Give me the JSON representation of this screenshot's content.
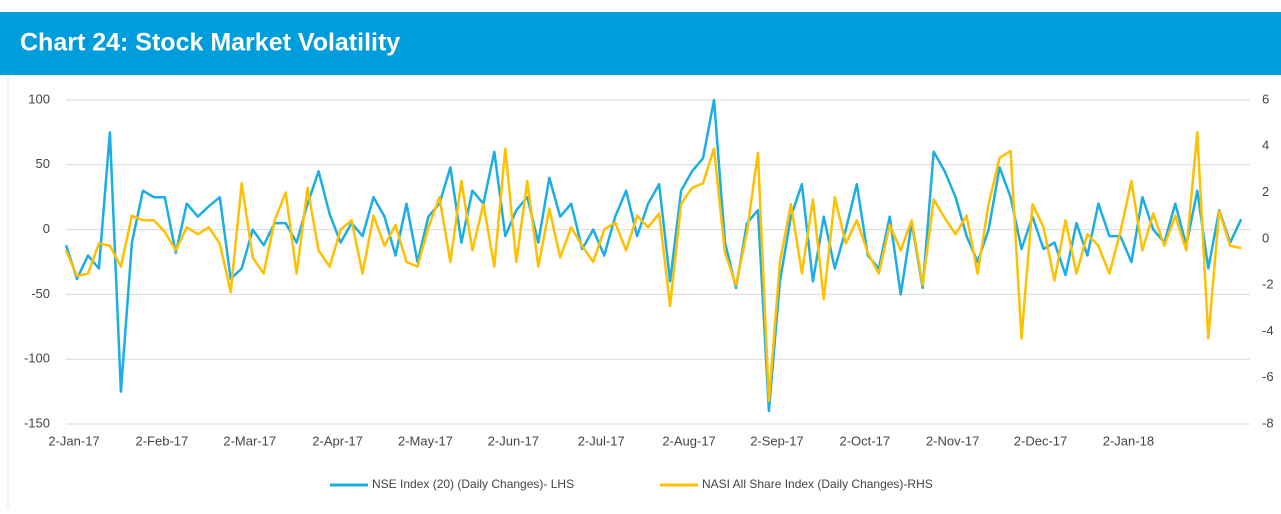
{
  "chart_data": {
    "type": "line",
    "title": "Chart 24: Stock Market Volatility",
    "categories": [
      "2-Jan-17",
      null,
      null,
      null,
      null,
      null,
      null,
      null,
      "2-Feb-17",
      null,
      null,
      null,
      null,
      null,
      null,
      null,
      "2-Mar-17",
      null,
      null,
      null,
      null,
      null,
      null,
      null,
      "2-Apr-17",
      null,
      null,
      null,
      null,
      null,
      null,
      null,
      "2-May-17",
      null,
      null,
      null,
      null,
      null,
      null,
      null,
      "2-Jun-17",
      null,
      null,
      null,
      null,
      null,
      null,
      null,
      "2-Jul-17",
      null,
      null,
      null,
      null,
      null,
      null,
      null,
      "2-Aug-17",
      null,
      null,
      null,
      null,
      null,
      null,
      null,
      "2-Sep-17",
      null,
      null,
      null,
      null,
      null,
      null,
      null,
      "2-Oct-17",
      null,
      null,
      null,
      null,
      null,
      null,
      null,
      "2-Nov-17",
      null,
      null,
      null,
      null,
      null,
      null,
      null,
      "2-Dec-17",
      null,
      null,
      null,
      null,
      null,
      null,
      null,
      "2-Jan-18",
      null,
      null,
      null,
      null,
      null,
      null,
      null,
      null,
      null,
      null,
      null
    ],
    "series": [
      {
        "name": "NSE Index (20) (Daily Changes)- LHS",
        "color": "#1aaee5",
        "values": [
          -12,
          -38,
          -20,
          -30,
          75,
          -125,
          -10,
          30,
          25,
          25,
          -18,
          20,
          10,
          18,
          25,
          -38,
          -30,
          0,
          -12,
          5,
          5,
          -10,
          20,
          45,
          12,
          -10,
          5,
          -5,
          25,
          10,
          -20,
          20,
          -25,
          10,
          20,
          48,
          -10,
          30,
          20,
          60,
          -5,
          15,
          25,
          -10,
          40,
          10,
          20,
          -15,
          0,
          -20,
          10,
          30,
          -5,
          20,
          35,
          -40,
          30,
          45,
          55,
          100,
          -10,
          -45,
          5,
          15,
          -140,
          -40,
          10,
          35,
          -40,
          10,
          -30,
          0,
          35,
          -20,
          -30,
          10,
          -50,
          5,
          -45,
          60,
          45,
          25,
          -5,
          -25,
          0,
          48,
          25,
          -15,
          10,
          -15,
          -10,
          -35,
          5,
          -20,
          20,
          -5,
          -5,
          -25,
          25,
          0,
          -10,
          20,
          -12,
          30,
          -30,
          15,
          -10,
          8
        ]
      },
      {
        "name": "NASI All Share Index (Daily Changes)-RHS",
        "color": "#ffc000",
        "axis": "y2",
        "values": [
          -0.5,
          -1.6,
          -1.5,
          -0.2,
          -0.3,
          -1.2,
          1.0,
          0.8,
          0.8,
          0.3,
          -0.5,
          0.5,
          0.2,
          0.5,
          -0.2,
          -2.3,
          2.4,
          -0.8,
          -1.5,
          0.8,
          2.0,
          -1.5,
          2.2,
          -0.5,
          -1.2,
          0.4,
          0.8,
          -1.5,
          1.0,
          -0.3,
          0.6,
          -1.0,
          -1.2,
          0.5,
          1.8,
          -1.0,
          2.5,
          -0.5,
          1.5,
          -1.2,
          3.9,
          -1.0,
          2.5,
          -1.2,
          1.3,
          -0.8,
          0.5,
          -0.3,
          -1.0,
          0.4,
          0.7,
          -0.5,
          1.0,
          0.5,
          1.1,
          -2.9,
          1.5,
          2.2,
          2.4,
          3.9,
          -0.6,
          -2.0,
          0.3,
          3.7,
          -7.0,
          -1.0,
          1.5,
          -1.5,
          1.7,
          -2.6,
          1.8,
          -0.2,
          0.8,
          -0.6,
          -1.5,
          0.6,
          -0.5,
          0.8,
          -2.0,
          1.7,
          0.9,
          0.2,
          1.0,
          -1.5,
          1.5,
          3.5,
          3.8,
          -4.3,
          1.5,
          0.5,
          -1.8,
          0.8,
          -1.5,
          0.2,
          -0.3,
          -1.5,
          0.3,
          2.5,
          -0.5,
          1.1,
          -0.3,
          1.0,
          -0.5,
          4.6,
          -4.3,
          1.2,
          -0.3,
          -0.4
        ]
      }
    ],
    "ylim": [
      -150,
      100
    ],
    "yticks": [
      -150,
      -100,
      -50,
      0,
      50,
      100
    ],
    "y2lim": [
      -8,
      6
    ],
    "y2ticks": [
      -8,
      -6,
      -4,
      -2,
      0,
      2,
      4,
      6
    ],
    "grid": true
  }
}
